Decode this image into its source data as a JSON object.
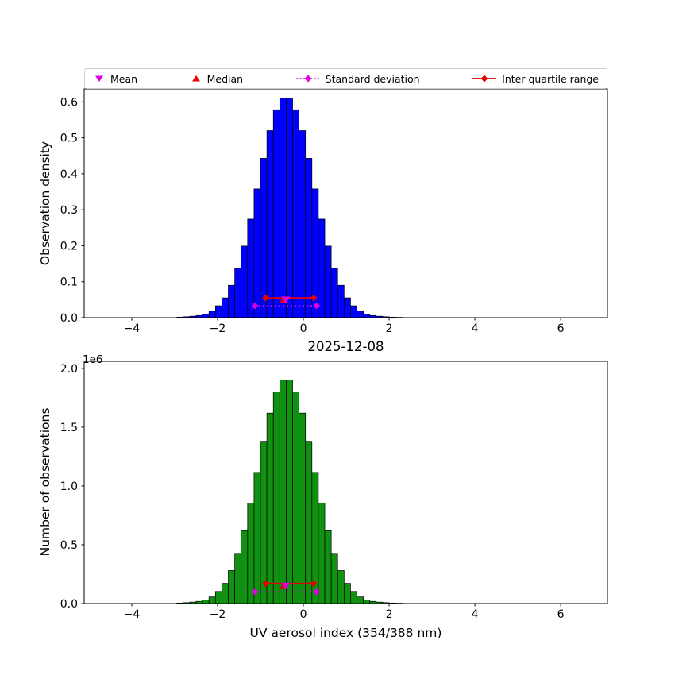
{
  "figure": {
    "title": "2025-12-08",
    "xlabel": "UV aerosol index (354/388 nm)",
    "background": "#ffffff"
  },
  "colors": {
    "blue": "#0000ff",
    "green": "#119111",
    "red": "#e60000",
    "magenta": "#dd00dd",
    "edge": "#000000",
    "legend_border": "#cccccc"
  },
  "legend": {
    "items": [
      {
        "label": "Mean",
        "icon": "mean-down-triangle-icon"
      },
      {
        "label": "Median",
        "icon": "median-up-triangle-icon"
      },
      {
        "label": "Standard deviation",
        "icon": "std-dotted-line-diamond-icon"
      },
      {
        "label": "Inter quartile range",
        "icon": "iqr-solid-line-diamond-icon"
      }
    ]
  },
  "stats": {
    "mean": -0.41,
    "median": -0.46,
    "std_low": -1.13,
    "std_high": 0.31,
    "iqr_low": -0.88,
    "iqr_high": 0.24
  },
  "chart_data": [
    {
      "type": "bar",
      "subtype": "histogram",
      "title": "",
      "ylabel": "Observation density",
      "bar_color": "#0000ff",
      "edge_color": "#000000",
      "bin_start": -2.95,
      "bin_width": 0.15,
      "values": [
        0.0015,
        0.0025,
        0.004,
        0.006,
        0.01,
        0.018,
        0.033,
        0.055,
        0.09,
        0.137,
        0.199,
        0.274,
        0.358,
        0.443,
        0.52,
        0.578,
        0.61,
        0.61,
        0.578,
        0.52,
        0.443,
        0.358,
        0.274,
        0.199,
        0.137,
        0.09,
        0.055,
        0.033,
        0.018,
        0.01,
        0.006,
        0.004,
        0.0025,
        0.0015,
        0.001,
        0.0006,
        0.0004,
        0.0002
      ],
      "xlim": [
        -5.11,
        7.09
      ],
      "ylim": [
        0,
        0.636
      ],
      "xticks": [
        -4,
        -2,
        0,
        2,
        4,
        6
      ],
      "yticks": [
        0.0,
        0.1,
        0.2,
        0.3,
        0.4,
        0.5,
        0.6
      ],
      "ytick_labels": [
        "0.0",
        "0.1",
        "0.2",
        "0.3",
        "0.4",
        "0.5",
        "0.6"
      ],
      "grid": false,
      "legend_position": "upper center outside",
      "markers": {
        "std_y": 0.033,
        "mean_y": 0.05,
        "median_y": 0.05,
        "iqr_y": 0.055
      }
    },
    {
      "type": "bar",
      "subtype": "histogram",
      "title": "",
      "ylabel": "Number of observations",
      "offset_label": "1e6",
      "bar_color": "#119111",
      "edge_color": "#000000",
      "bin_start": -2.95,
      "bin_width": 0.15,
      "values": [
        4700,
        7800,
        12500,
        18700,
        31200,
        56100,
        102800,
        171300,
        280400,
        426800,
        619900,
        853500,
        1115200,
        1379900,
        1619800,
        1800500,
        1900200,
        1900200,
        1800500,
        1619800,
        1379900,
        1115200,
        853500,
        619900,
        426800,
        280400,
        171300,
        102800,
        56100,
        31200,
        18700,
        12500,
        7800,
        4700,
        3100,
        1900,
        1200,
        600
      ],
      "xlim": [
        -5.11,
        7.09
      ],
      "ylim": [
        0,
        2060000
      ],
      "xticks": [
        -4,
        -2,
        0,
        2,
        4,
        6
      ],
      "yticks": [
        0,
        500000,
        1000000,
        1500000,
        2000000
      ],
      "ytick_labels": [
        "0.0",
        "0.5",
        "1.0",
        "1.5",
        "2.0"
      ],
      "grid": false,
      "markers": {
        "std_y": 100000,
        "mean_y": 150000,
        "median_y": 150000,
        "iqr_y": 170000
      }
    }
  ]
}
